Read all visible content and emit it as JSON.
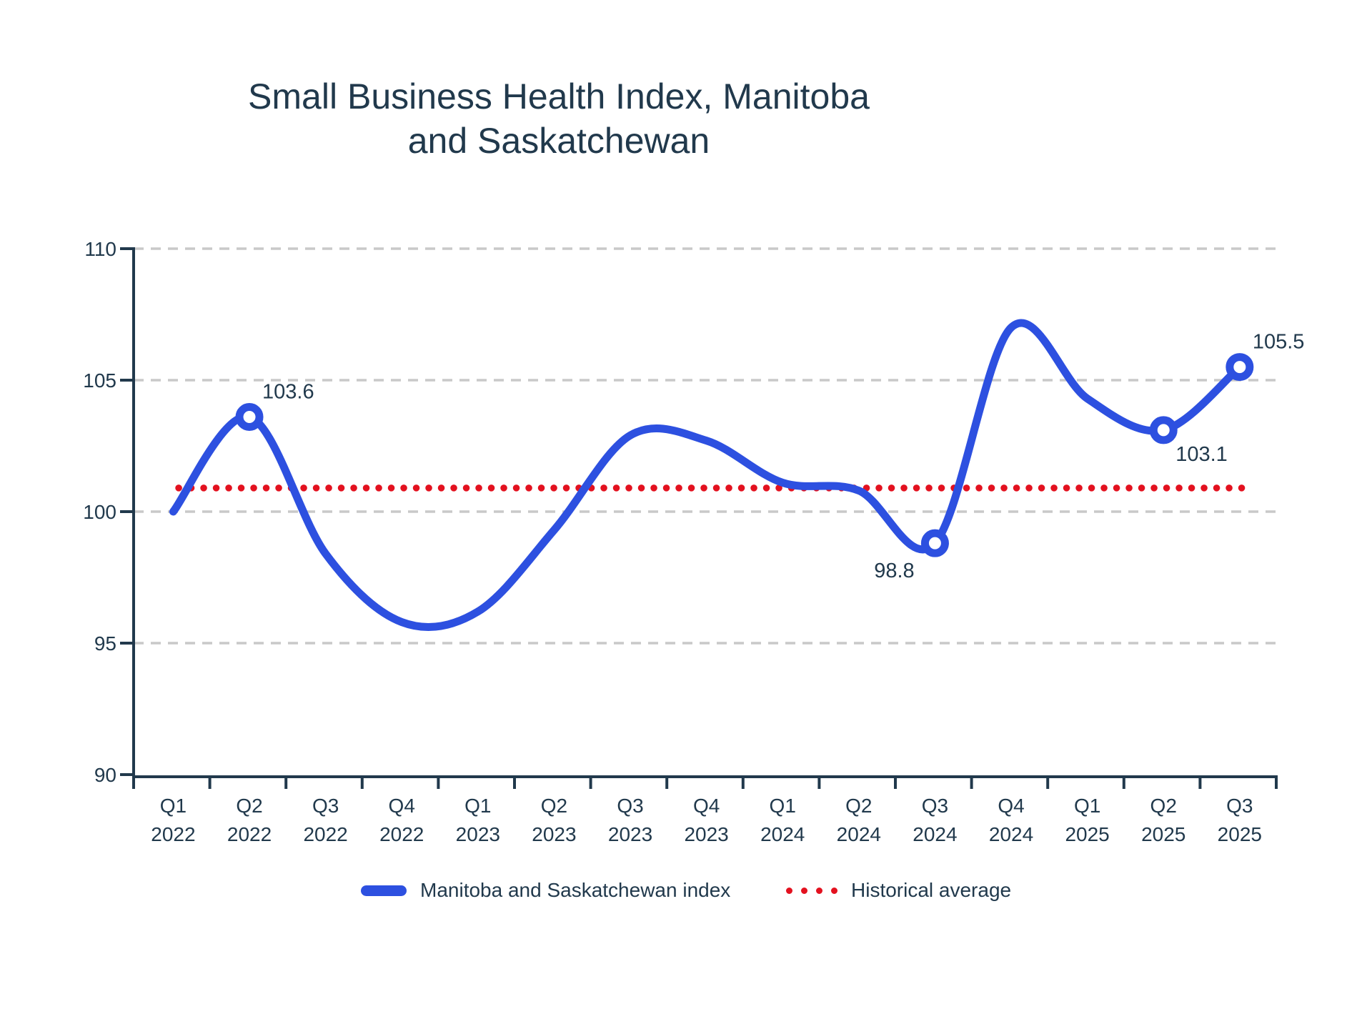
{
  "chart_data": {
    "type": "line",
    "title": "Small Business Health Index, Manitoba and Saskatchewan",
    "title_lines": [
      "Small Business Health Index, Manitoba",
      "and Saskatchewan"
    ],
    "categories": [
      {
        "quarter": "Q1",
        "year": "2022"
      },
      {
        "quarter": "Q2",
        "year": "2022"
      },
      {
        "quarter": "Q3",
        "year": "2022"
      },
      {
        "quarter": "Q4",
        "year": "2022"
      },
      {
        "quarter": "Q1",
        "year": "2023"
      },
      {
        "quarter": "Q2",
        "year": "2023"
      },
      {
        "quarter": "Q3",
        "year": "2023"
      },
      {
        "quarter": "Q4",
        "year": "2023"
      },
      {
        "quarter": "Q1",
        "year": "2024"
      },
      {
        "quarter": "Q2",
        "year": "2024"
      },
      {
        "quarter": "Q3",
        "year": "2024"
      },
      {
        "quarter": "Q4",
        "year": "2024"
      },
      {
        "quarter": "Q1",
        "year": "2025"
      },
      {
        "quarter": "Q2",
        "year": "2025"
      },
      {
        "quarter": "Q3",
        "year": "2025"
      }
    ],
    "series": [
      {
        "name": "Manitoba and Saskatchewan index",
        "color": "#2d50e0",
        "values": [
          100.0,
          103.6,
          98.4,
          95.8,
          96.2,
          99.3,
          102.9,
          102.7,
          101.1,
          100.8,
          98.8,
          107.0,
          104.3,
          103.1,
          105.5
        ]
      }
    ],
    "historical_average": {
      "label": "Historical average",
      "value": 100.9,
      "color": "#e3111f"
    },
    "ylim": [
      90,
      110
    ],
    "yticks": [
      110,
      105,
      100,
      95,
      90
    ],
    "grid": "horizontal-dashed",
    "legend_position": "bottom",
    "annotations": [
      {
        "index": 1,
        "text": "103.6",
        "placement": "above-right"
      },
      {
        "index": 10,
        "text": "98.8",
        "placement": "below-left"
      },
      {
        "index": 13,
        "text": "103.1",
        "placement": "below-right"
      },
      {
        "index": 14,
        "text": "105.5",
        "placement": "above-right"
      }
    ],
    "legend": [
      {
        "label": "Manitoba and Saskatchewan index",
        "swatch": "line",
        "color": "#2d50e0"
      },
      {
        "label": "Historical average",
        "swatch": "dots",
        "color": "#e3111f"
      }
    ],
    "colors": {
      "text": "#21394c",
      "axis": "#21394c",
      "grid": "#c9c9c9"
    }
  }
}
